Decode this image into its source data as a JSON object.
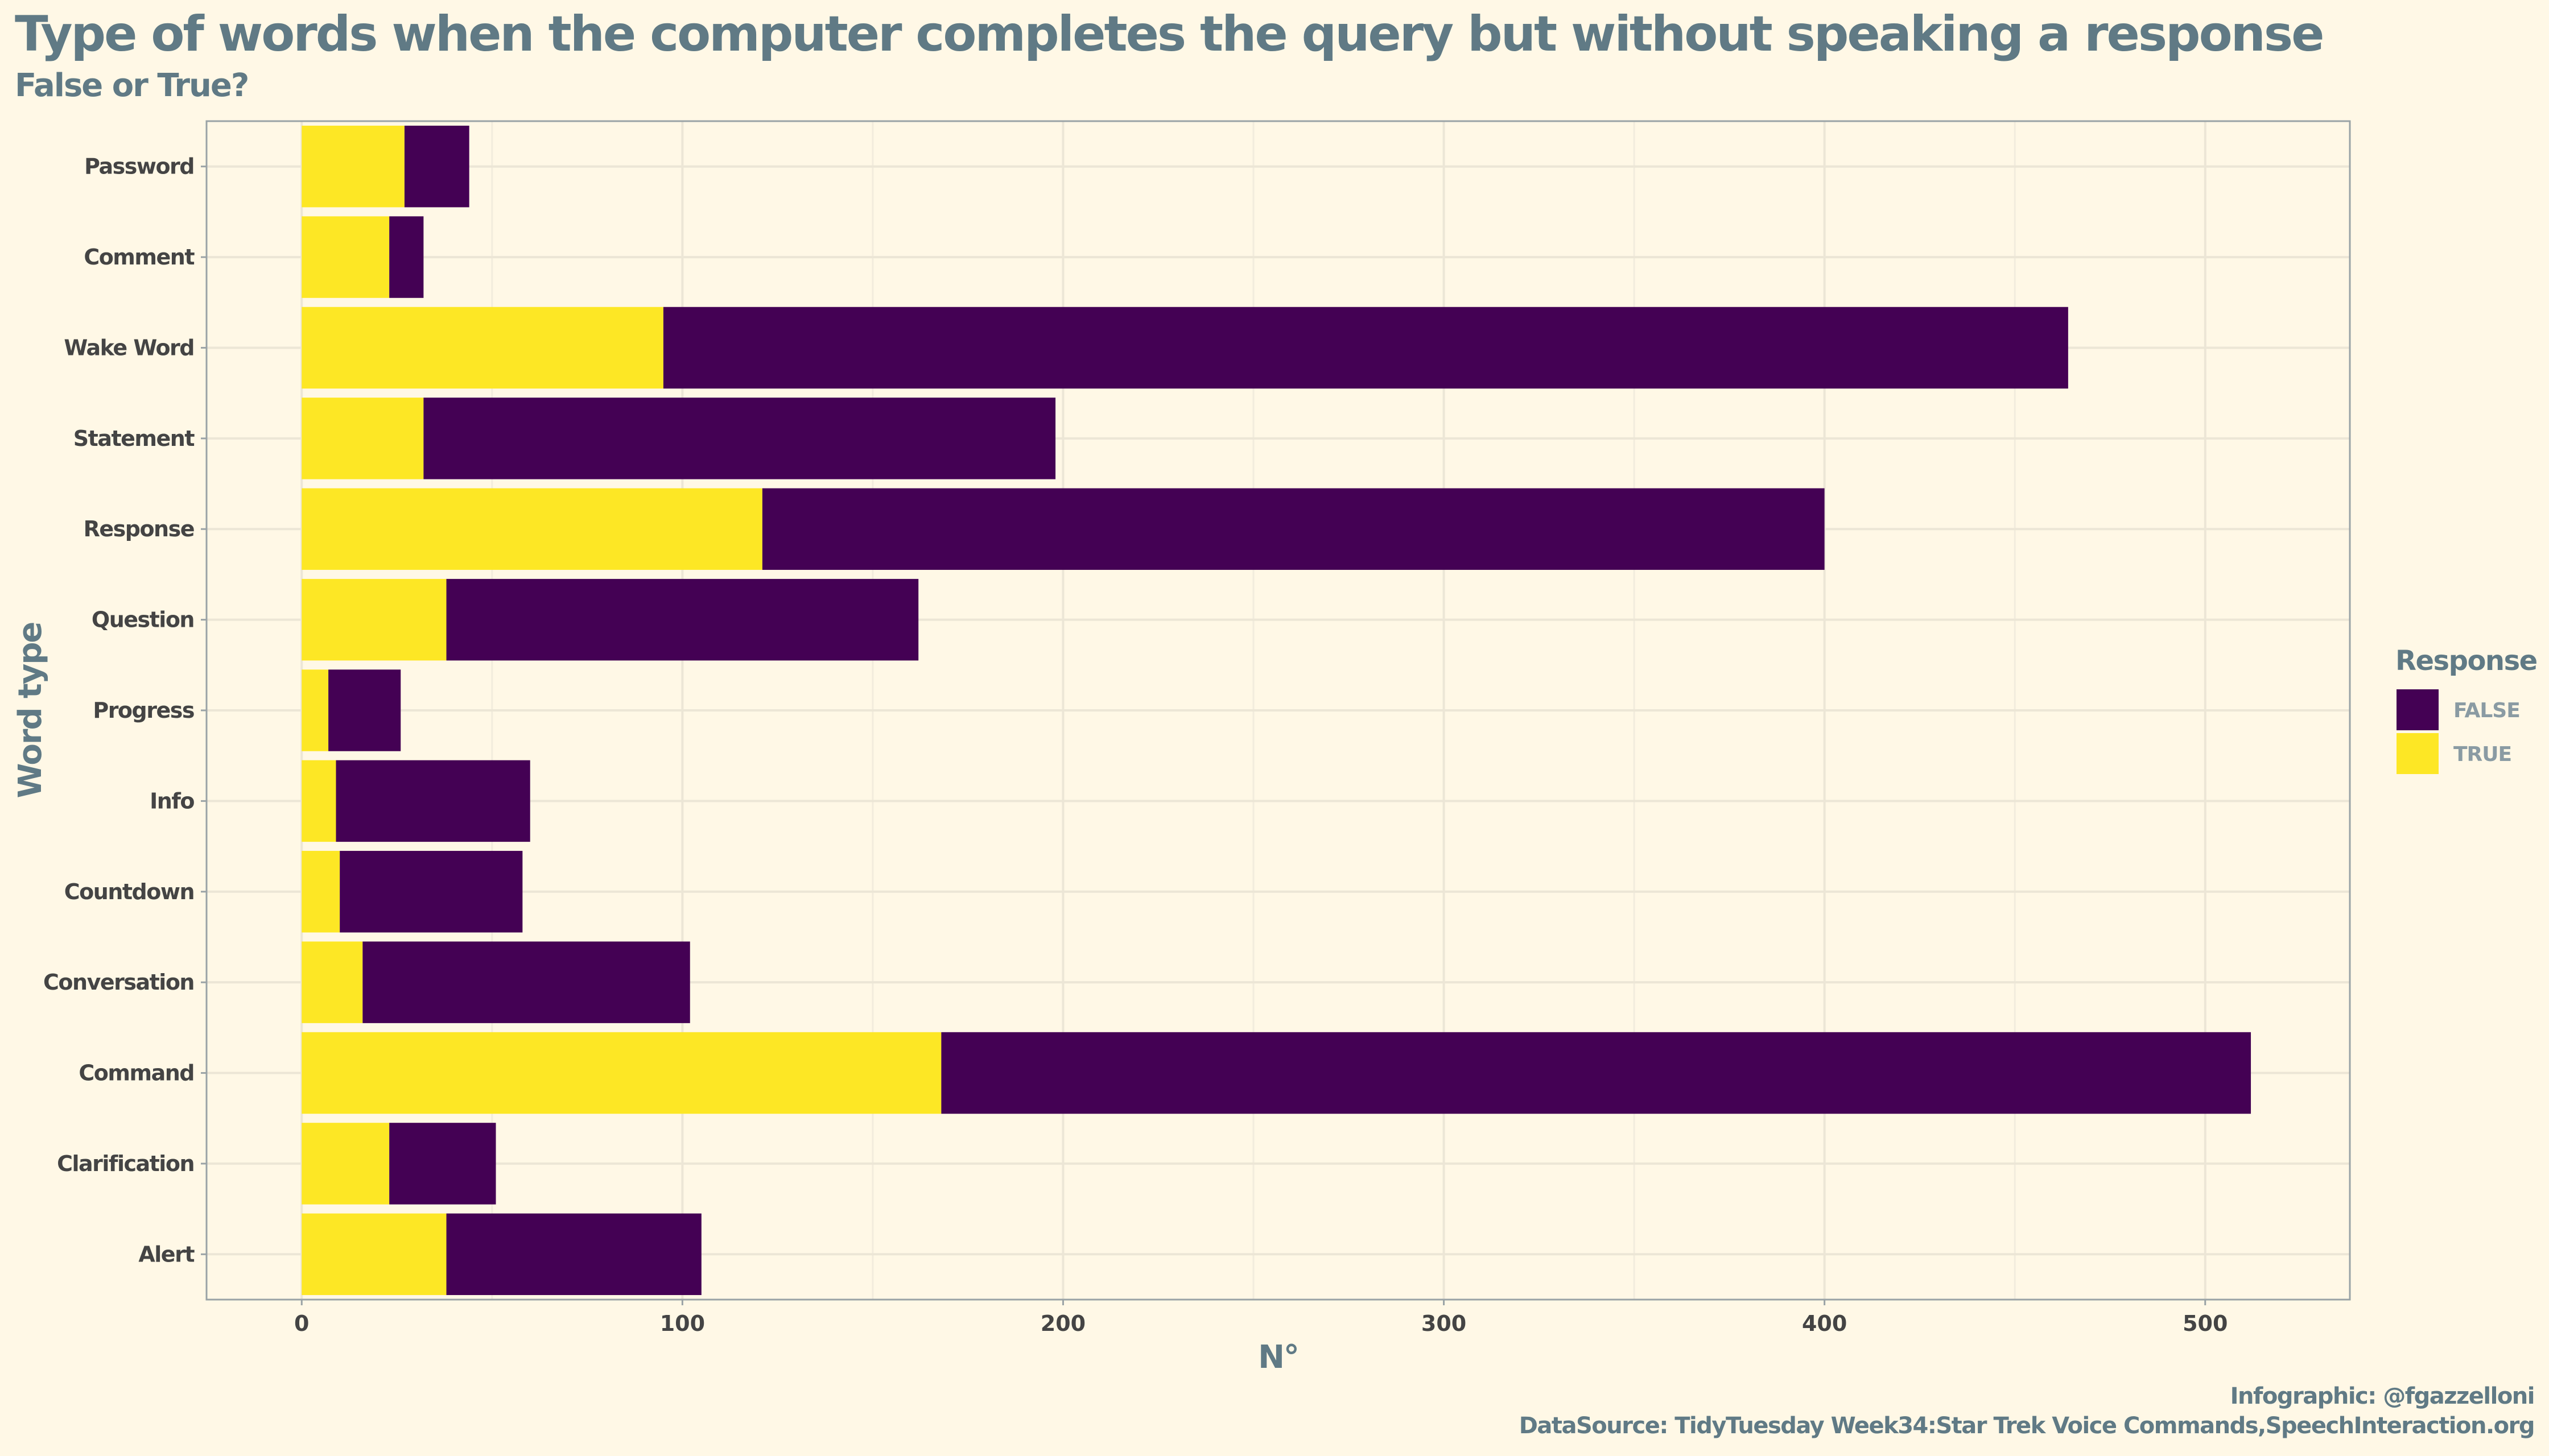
{
  "chart_data": {
    "type": "bar",
    "orientation": "horizontal",
    "stacked": true,
    "title": "Type of words when the computer completes the query but without speaking a response",
    "subtitle": "False or True?",
    "xlabel": "N°",
    "ylabel": "Word type",
    "xlim": [
      -25,
      538
    ],
    "xticks": [
      0,
      100,
      200,
      300,
      400,
      500
    ],
    "categories": [
      "Password",
      "Comment",
      "Wake Word",
      "Statement",
      "Response",
      "Question",
      "Progress",
      "Info",
      "Countdown",
      "Conversation",
      "Command",
      "Clarification",
      "Alert"
    ],
    "series": [
      {
        "name": "TRUE",
        "color": "#FDE725",
        "values": [
          27,
          23,
          95,
          32,
          121,
          38,
          7,
          9,
          10,
          16,
          168,
          23,
          38
        ]
      },
      {
        "name": "FALSE",
        "color": "#440154",
        "values": [
          17,
          9,
          369,
          166,
          279,
          124,
          19,
          51,
          48,
          86,
          344,
          28,
          67
        ]
      }
    ],
    "legend": {
      "title": "Response",
      "position": "right",
      "entries": [
        {
          "label": "FALSE",
          "color": "#440154"
        },
        {
          "label": "TRUE",
          "color": "#FDE725"
        }
      ]
    },
    "grid": true
  },
  "caption": {
    "line1": "Infographic: @fgazzelloni",
    "line2": "DataSource: TidyTuesday Week34:Star Trek Voice Commands,SpeechInteraction.org"
  }
}
